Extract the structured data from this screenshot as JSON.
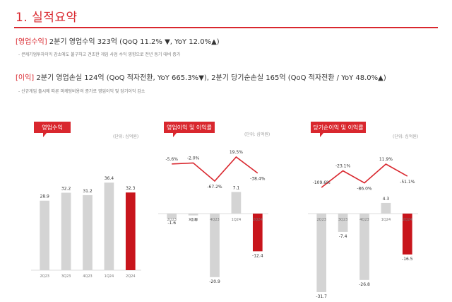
{
  "header": {
    "title": "1. 실적요약",
    "revenue_tag": "[영업수익]",
    "revenue_text": "2분기 영업수익 323억 (QoQ 11.2% ▼, YoY 12.0%▲)",
    "revenue_note": "- 콘케기업투자이익 감소에도 불구하고 견조한 게임 사업 수익 영향으로 전년 동기 대비 증가",
    "profit_tag": "[이익]",
    "profit_text": "2분기 영업손실 124억 (QoQ 적자전환, YoY 665.3%▼), 2분기 당기순손실 165억 (QoQ 적자전환 / YoY 48.0%▲)",
    "profit_note": "- 신규게임 출시에 따른 마케팅비용의 증가로 영업이익 및 당기이익 감소"
  },
  "colors": {
    "accent": "#d9272e",
    "bar_gray": "#d4d4d4",
    "bar_red": "#c8151c"
  },
  "chart_data": [
    {
      "type": "bar",
      "badge": "영업수익",
      "unit": "(단위: 십억원)",
      "categories": [
        "2Q23",
        "3Q23",
        "4Q23",
        "1Q24",
        "2Q24"
      ],
      "values": [
        28.9,
        32.2,
        31.2,
        36.4,
        32.3
      ],
      "highlight_index": 4
    },
    {
      "type": "bar",
      "badge": "영업이익 및 이익률",
      "unit": "(단위: 십억원)",
      "categories": [
        "2Q23",
        "3Q23",
        "4Q23",
        "1Q24",
        "2Q24"
      ],
      "values": [
        -1.6,
        -0.6,
        -20.9,
        7.1,
        -12.4
      ],
      "highlight_index": 4,
      "margin_series": {
        "values": [
          -5.6,
          -2.0,
          -67.2,
          19.5,
          -38.4
        ],
        "labels": [
          "-5.6%",
          "-2.0%",
          "-67.2%",
          "19.5%",
          "-38.4%"
        ]
      }
    },
    {
      "type": "bar",
      "badge": "당기순이익 및 이익률",
      "unit": "(단위: 십억원)",
      "categories": [
        "2Q23",
        "3Q23",
        "4Q23",
        "1Q24",
        "2Q24"
      ],
      "values": [
        -31.7,
        -7.4,
        -26.8,
        4.3,
        -16.5
      ],
      "highlight_index": 4,
      "margin_series": {
        "values": [
          -109.6,
          -23.1,
          -86.0,
          11.9,
          -51.1
        ],
        "labels": [
          "-109.6%",
          "-23.1%",
          "-86.0%",
          "11.9%",
          "-51.1%"
        ]
      }
    }
  ]
}
